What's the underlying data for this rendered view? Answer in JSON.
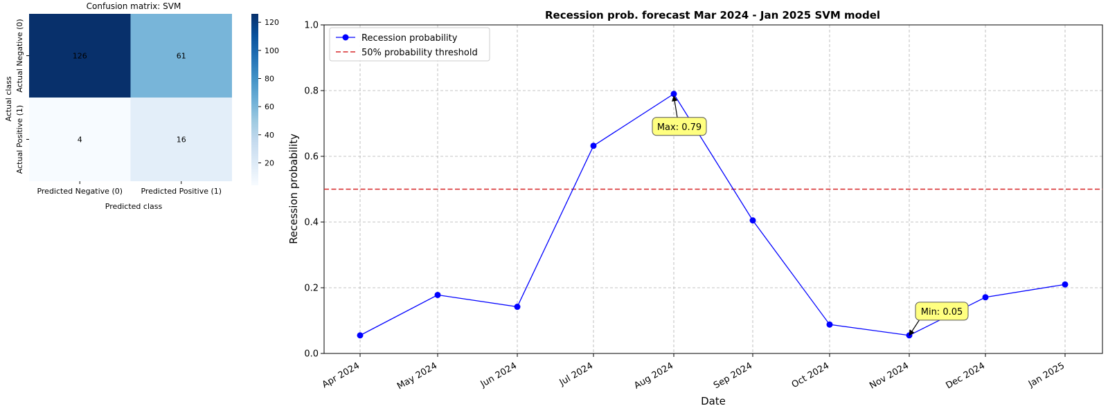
{
  "chart_data": [
    {
      "type": "heatmap",
      "title": "Confusion matrix: SVM",
      "xlabel": "Predicted class",
      "ylabel": "Actual class",
      "x_categories": [
        "Predicted Negative (0)",
        "Predicted Positive (1)"
      ],
      "y_categories": [
        "Actual Negative (0)",
        "Actual Positive (1)"
      ],
      "values": [
        [
          126,
          61
        ],
        [
          4,
          16
        ]
      ],
      "colormap": "Blues",
      "colorbar": {
        "min": 4,
        "max": 126,
        "ticks": [
          20,
          40,
          60,
          80,
          100,
          120
        ]
      }
    },
    {
      "type": "line",
      "title": "Recession prob. forecast Mar 2024 - Jan 2025 SVM model",
      "xlabel": "Date",
      "ylabel": "Recession probability",
      "ylim": [
        0.0,
        1.0
      ],
      "y_ticks": [
        "0.0",
        "0.2",
        "0.4",
        "0.6",
        "0.8",
        "1.0"
      ],
      "x": [
        "Apr 2024",
        "May 2024",
        "Jun 2024",
        "Jul 2024",
        "Aug 2024",
        "Sep 2024",
        "Oct 2024",
        "Nov 2024",
        "Dec 2024",
        "Jan 2025"
      ],
      "series": [
        {
          "name": "Recession probability",
          "color": "#0000ff",
          "values": [
            0.055,
            0.178,
            0.142,
            0.632,
            0.79,
            0.405,
            0.088,
            0.055,
            0.171,
            0.21
          ]
        }
      ],
      "threshold": {
        "name": "50% probability threshold",
        "value": 0.5,
        "color": "#d62728"
      },
      "annotations": [
        {
          "text": "Max: 0.79",
          "x": "Aug 2024",
          "y": 0.79
        },
        {
          "text": "Min: 0.05",
          "x": "Nov 2024",
          "y": 0.055
        }
      ],
      "grid": true,
      "legend": "top-left"
    }
  ]
}
